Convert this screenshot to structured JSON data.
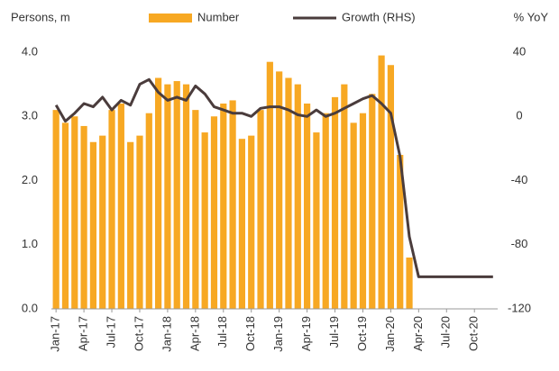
{
  "chart_data": {
    "type": "bar_line",
    "y_label": "Persons, m",
    "y2_label": "% YoY",
    "categories": [
      "Jan-17",
      null,
      null,
      "Apr-17",
      null,
      null,
      "Jul-17",
      null,
      null,
      "Oct-17",
      null,
      null,
      "Jan-18",
      null,
      null,
      "Apr-18",
      null,
      null,
      "Jul-18",
      null,
      null,
      "Oct-18",
      null,
      null,
      "Jan-19",
      null,
      null,
      "Apr-19",
      null,
      null,
      "Jul-19",
      null,
      null,
      "Oct-19",
      null,
      null,
      "Jan-20",
      null,
      null,
      "Apr-20",
      null,
      null,
      "Jul-20",
      null,
      null,
      "Oct-20",
      null,
      null
    ],
    "series": [
      {
        "name": "Number",
        "type": "bar",
        "color": "#f7a823",
        "values": [
          3.1,
          2.9,
          3.0,
          2.85,
          2.6,
          2.7,
          3.1,
          3.2,
          2.6,
          2.7,
          3.05,
          3.6,
          3.5,
          3.55,
          3.5,
          3.1,
          2.75,
          3.0,
          3.2,
          3.25,
          2.65,
          2.7,
          3.1,
          3.85,
          3.7,
          3.6,
          3.5,
          3.2,
          2.75,
          3.05,
          3.3,
          3.5,
          2.9,
          3.05,
          3.35,
          3.95,
          3.8,
          2.4,
          0.8,
          null,
          null,
          null,
          null,
          null,
          null,
          null,
          null,
          null
        ]
      },
      {
        "name": "Growth (RHS)",
        "type": "line",
        "axis": "y2",
        "color": "#4a3c3c",
        "values": [
          7,
          -3,
          2,
          8,
          6,
          12,
          4,
          10,
          7,
          20,
          23,
          15,
          10,
          12,
          10,
          19,
          14,
          6,
          4,
          2,
          2,
          0,
          5,
          6,
          6,
          4,
          1,
          0,
          4,
          0,
          2,
          5,
          8,
          11,
          13,
          8,
          2,
          -25,
          -75,
          -100,
          -100,
          -100,
          -100,
          -100,
          -100,
          -100,
          -100,
          -100
        ]
      }
    ],
    "ylim": [
      0,
      4
    ],
    "yticks": [
      {
        "value": 0,
        "label": "0.0"
      },
      {
        "value": 1,
        "label": "1.0"
      },
      {
        "value": 2,
        "label": "2.0"
      },
      {
        "value": 3,
        "label": "3.0"
      },
      {
        "value": 4,
        "label": "4.0"
      }
    ],
    "y2lim": [
      -120,
      40
    ],
    "y2ticks": [
      -120,
      -80,
      -40,
      0,
      40
    ]
  }
}
